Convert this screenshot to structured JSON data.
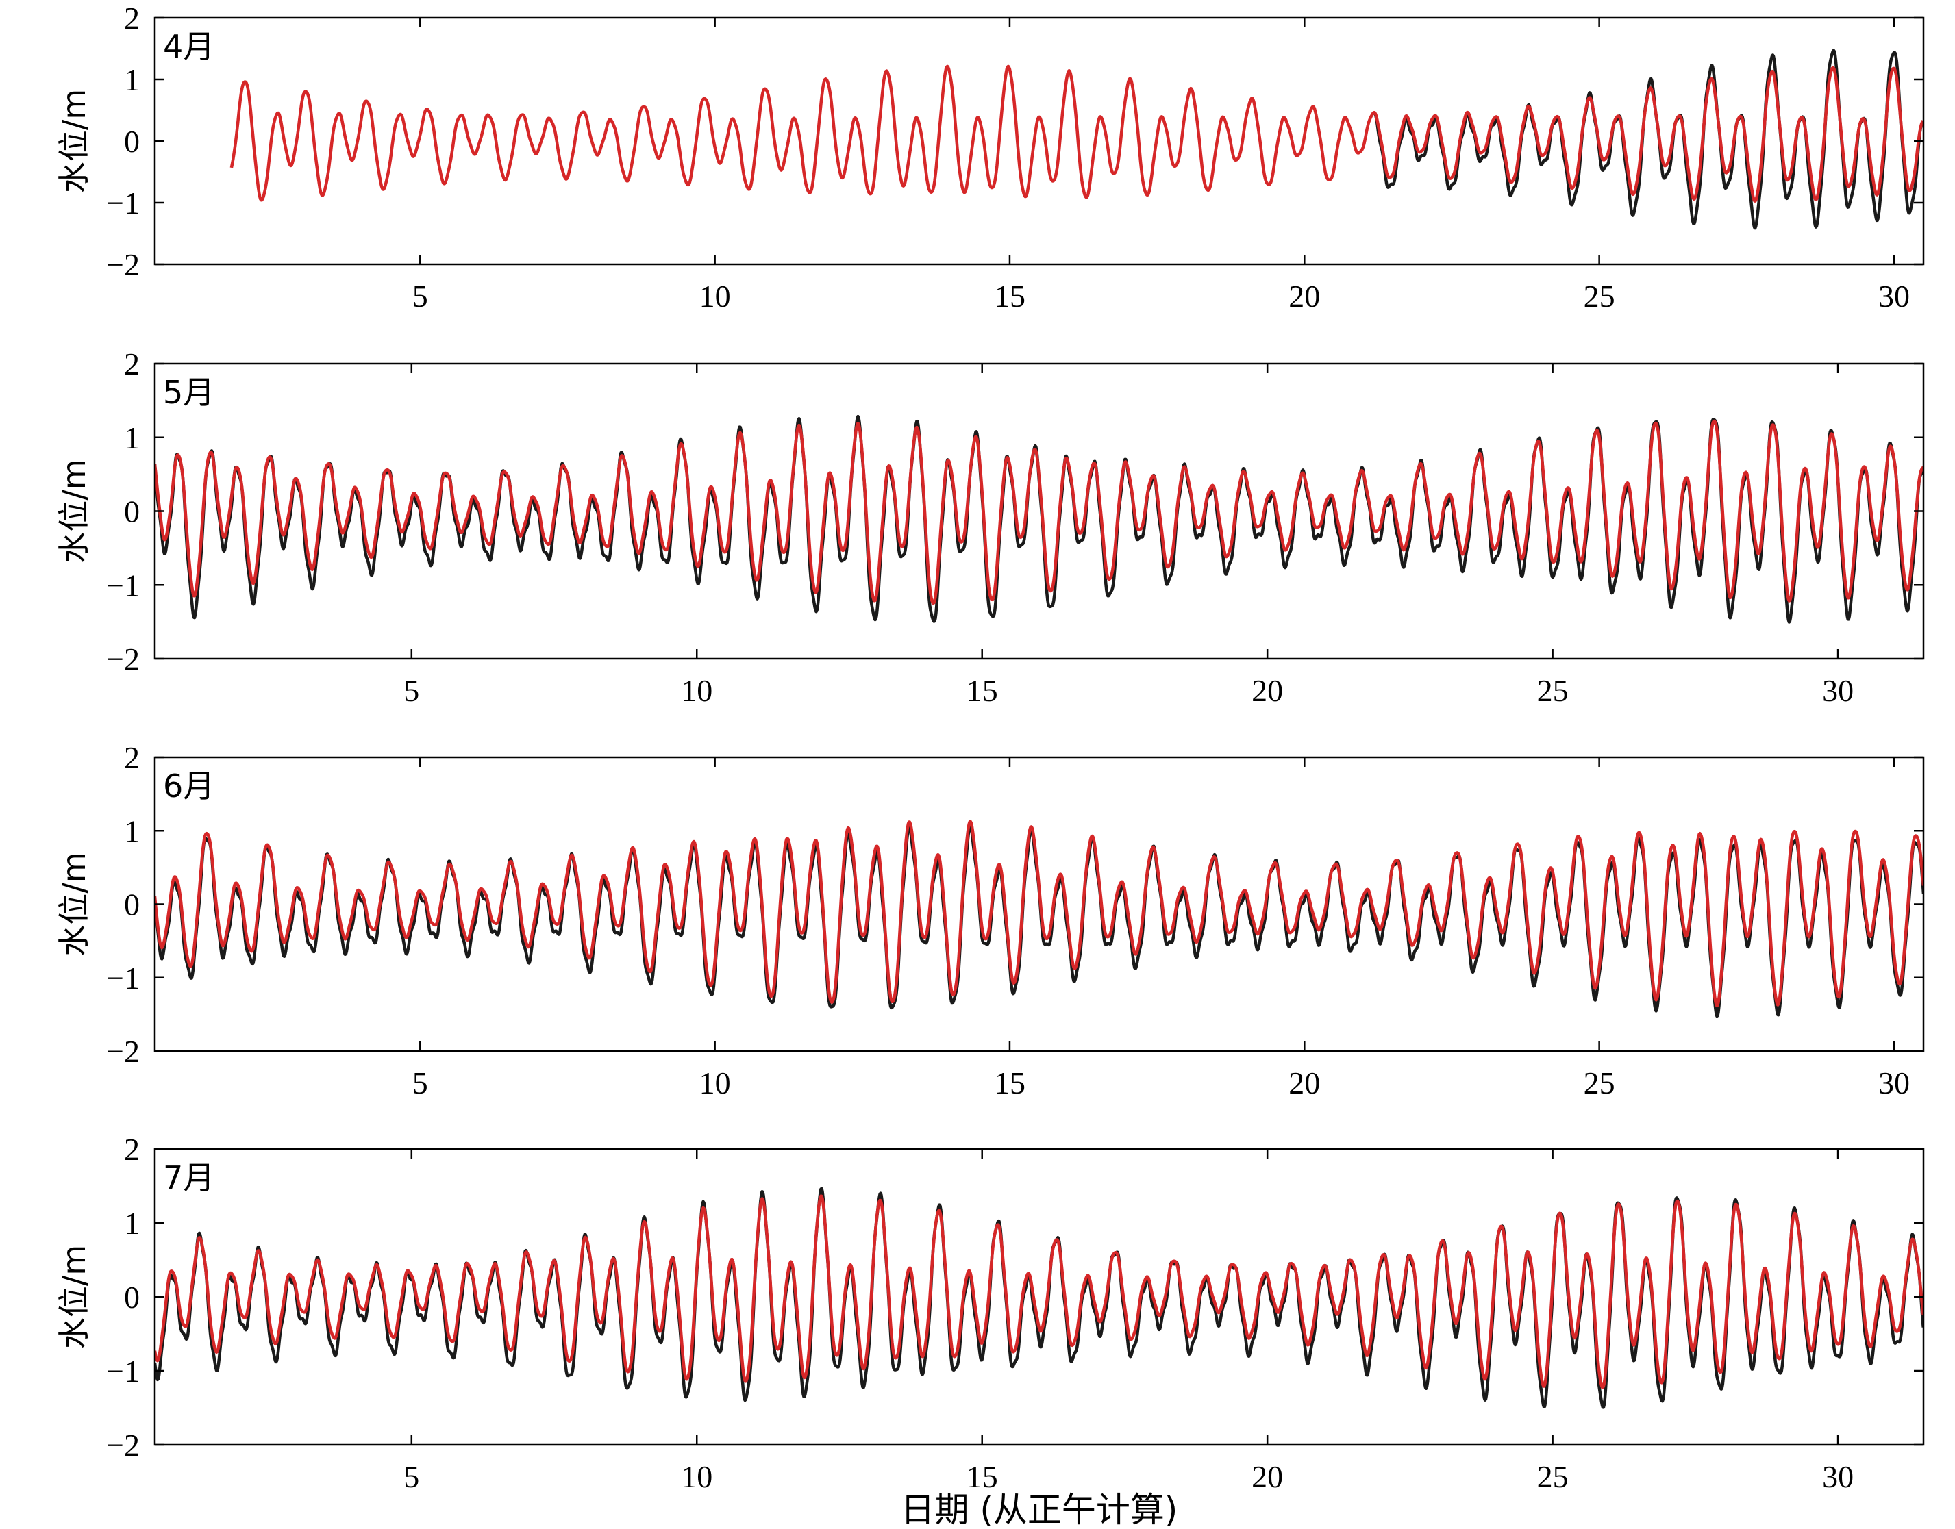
{
  "chart_data": [
    {
      "type": "line",
      "panel_label": "4月",
      "ylabel": "水位/m",
      "xlim": [
        0.5,
        30.5
      ],
      "ylim": [
        -2,
        2
      ],
      "xticks": [
        5,
        10,
        15,
        20,
        25,
        30
      ],
      "yticks": [
        -2,
        -1,
        0,
        1,
        2
      ],
      "series": [
        {
          "color": "#1a1a1a",
          "x_range": [
            21.2,
            30.5
          ],
          "amplitude_range": [
            0.6,
            1.45
          ],
          "mean_offset": -0.1
        },
        {
          "color": "#d62728",
          "x_range": [
            1.8,
            30.5
          ],
          "amplitude_range": [
            0.55,
            1.1
          ]
        }
      ]
    },
    {
      "type": "line",
      "panel_label": "5月",
      "ylabel": "水位/m",
      "xlim": [
        0.5,
        31.5
      ],
      "ylim": [
        -2,
        2
      ],
      "xticks": [
        5,
        10,
        15,
        20,
        25,
        30
      ],
      "yticks": [
        -2,
        -1,
        0,
        1,
        2
      ],
      "series": [
        {
          "color": "#1a1a1a",
          "x_range": [
            0.5,
            31.5
          ],
          "amplitude_range": [
            0.6,
            1.35
          ],
          "mean_offset": -0.1
        },
        {
          "color": "#d62728",
          "x_range": [
            0.5,
            31.5
          ],
          "amplitude_range": [
            0.5,
            1.2
          ]
        }
      ]
    },
    {
      "type": "line",
      "panel_label": "6月",
      "ylabel": "水位/m",
      "xlim": [
        0.5,
        30.5
      ],
      "ylim": [
        -2,
        2
      ],
      "xticks": [
        5,
        10,
        15,
        20,
        25,
        30
      ],
      "yticks": [
        -2,
        -1,
        0,
        1,
        2
      ],
      "series": [
        {
          "color": "#1a1a1a",
          "x_range": [
            0.5,
            30.5
          ],
          "amplitude_range": [
            0.6,
            1.25
          ],
          "mean_offset": -0.1
        },
        {
          "color": "#d62728",
          "x_range": [
            0.5,
            30.5
          ],
          "amplitude_range": [
            0.5,
            1.25
          ]
        }
      ]
    },
    {
      "type": "line",
      "panel_label": "7月",
      "ylabel": "水位/m",
      "xlabel": "日期 (从正午计算)",
      "xlim": [
        0.5,
        31.5
      ],
      "ylim": [
        -2,
        2
      ],
      "xticks": [
        5,
        10,
        15,
        20,
        25,
        30
      ],
      "yticks": [
        -2,
        -1,
        0,
        1,
        2
      ],
      "series": [
        {
          "color": "#1a1a1a",
          "x_range": [
            0.5,
            31.5
          ],
          "amplitude_range": [
            0.6,
            1.4
          ],
          "mean_offset": -0.1
        },
        {
          "color": "#d62728",
          "x_range": [
            0.5,
            31.5
          ],
          "amplitude_range": [
            0.5,
            1.25
          ]
        }
      ]
    }
  ]
}
